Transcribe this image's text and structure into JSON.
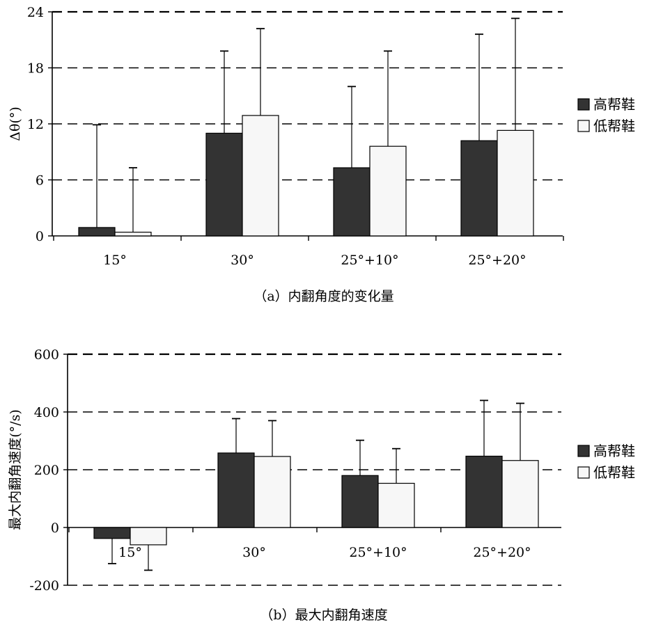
{
  "colors": {
    "high": "#333333",
    "low": "#f7f7f7",
    "stroke": "#000000"
  },
  "chart_data": [
    {
      "type": "bar",
      "caption": "（a）内翻角度的变化量",
      "ylabel": "Δθ(°)",
      "categories": [
        "15°",
        "30°",
        "25°+10°",
        "25°+20°"
      ],
      "ylim": [
        0,
        24
      ],
      "yticks": [
        "0",
        "6",
        "12",
        "18",
        "24"
      ],
      "grid": true,
      "legend": "right",
      "series": [
        {
          "name": "高帮鞋",
          "values": [
            0.9,
            11.0,
            7.3,
            10.2
          ],
          "error": [
            11.0,
            8.8,
            8.7,
            11.4
          ]
        },
        {
          "name": "低帮鞋",
          "values": [
            0.4,
            12.9,
            9.6,
            11.3
          ],
          "error": [
            6.9,
            9.3,
            10.2,
            12.0
          ]
        }
      ]
    },
    {
      "type": "bar",
      "caption": "（b）最大内翻角速度",
      "ylabel": "最大内翻角速度(°/s)",
      "categories": [
        "15°",
        "30°",
        "25°+10°",
        "25°+20°"
      ],
      "ylim": [
        -200,
        600
      ],
      "yticks": [
        "-200",
        "0",
        "200",
        "400",
        "600"
      ],
      "grid": true,
      "legend": "right",
      "series": [
        {
          "name": "高帮鞋",
          "values": [
            -38,
            258,
            180,
            247
          ],
          "error": [
            87,
            119,
            122,
            193
          ]
        },
        {
          "name": "低帮鞋",
          "values": [
            -60,
            246,
            153,
            232
          ],
          "error": [
            88,
            124,
            120,
            198
          ]
        }
      ]
    }
  ]
}
